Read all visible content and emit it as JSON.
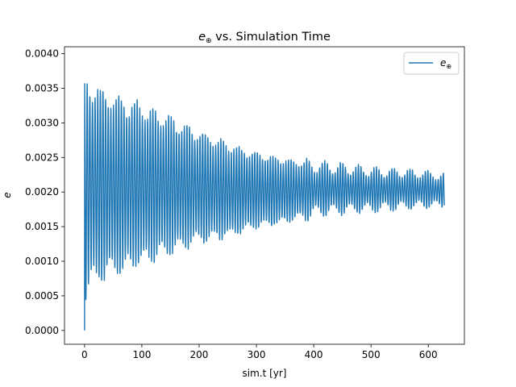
{
  "chart_data": {
    "type": "line",
    "title_base": "e",
    "title_sub": "⊕",
    "title_rest": " vs. Simulation Time",
    "xlabel": "sim.t [yr]",
    "ylabel": "e",
    "xlim": [
      -35,
      663
    ],
    "ylim": [
      -0.0002,
      0.0041
    ],
    "xticks": [
      0,
      100,
      200,
      300,
      400,
      500,
      600
    ],
    "xtick_labels": [
      "0",
      "100",
      "200",
      "300",
      "400",
      "500",
      "600"
    ],
    "yticks": [
      0.0,
      0.0005,
      0.001,
      0.0015,
      0.002,
      0.0025,
      0.003,
      0.0035,
      0.004
    ],
    "ytick_labels": [
      "0.0000",
      "0.0005",
      "0.0010",
      "0.0015",
      "0.0020",
      "0.0025",
      "0.0030",
      "0.0035",
      "0.0040"
    ],
    "grid": false,
    "legend_position": "top-right",
    "series": [
      {
        "name_base": "e",
        "name_sub": "⊕",
        "color": "#1f77b4",
        "x_start": 0,
        "x_end": 628,
        "upper_envelope": [
          [
            0,
            0.00398
          ],
          [
            50,
            0.0037
          ],
          [
            100,
            0.00352
          ],
          [
            150,
            0.0033
          ],
          [
            200,
            0.00305
          ],
          [
            250,
            0.00285
          ],
          [
            300,
            0.0027
          ],
          [
            350,
            0.00258
          ],
          [
            400,
            0.00248
          ],
          [
            450,
            0.00244
          ],
          [
            500,
            0.00238
          ],
          [
            550,
            0.00236
          ],
          [
            600,
            0.00232
          ],
          [
            628,
            0.00228
          ]
        ],
        "lower_envelope": [
          [
            0,
            0.0
          ],
          [
            10,
            0.0003
          ],
          [
            50,
            0.0005
          ],
          [
            100,
            0.0007
          ],
          [
            150,
            0.0009
          ],
          [
            200,
            0.0011
          ],
          [
            250,
            0.0012
          ],
          [
            300,
            0.00135
          ],
          [
            350,
            0.00145
          ],
          [
            400,
            0.0016
          ],
          [
            450,
            0.00165
          ],
          [
            500,
            0.00168
          ],
          [
            550,
            0.00172
          ],
          [
            600,
            0.00175
          ],
          [
            628,
            0.00175
          ]
        ]
      }
    ]
  }
}
